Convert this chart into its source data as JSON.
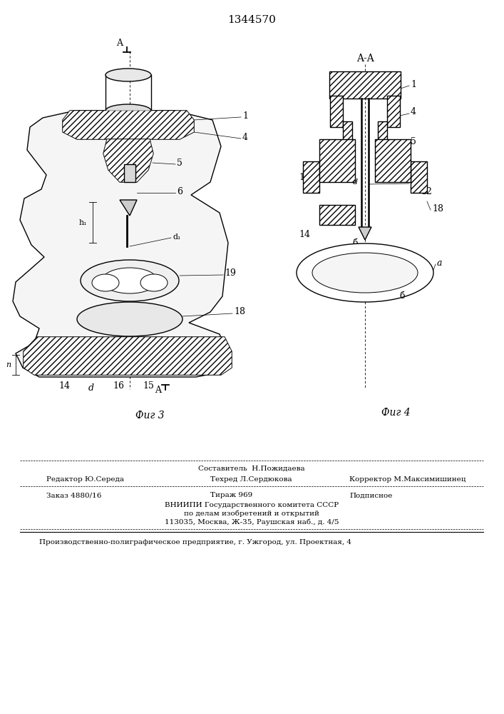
{
  "patent_number": "1344570",
  "background_color": "#ffffff",
  "line_color": "#000000",
  "footer_col1_line1": "",
  "footer_col2_line1": "Составитель  Н.Пожидаева",
  "footer_col1_line2": "Редактор Ю.Середа",
  "footer_col2_line2": "Техред Л.Сердюкова",
  "footer_col3_line2": "Корректор М.Максимишинец",
  "footer_order": "Заказ 4880/16",
  "footer_tirazh": "Тираж 969",
  "footer_podp": "Подписное",
  "footer_vniip1": "ВНИИПИ Государственного комитета СССР",
  "footer_vniip2": "по делам изобретений и открытий",
  "footer_vniip3": "113035, Москва, Ж-35, Раушская наб., д. 4/5",
  "footer_prod": "Производственно-полиграфическое предприятие, г. Ужгород, ул. Проектная, 4"
}
